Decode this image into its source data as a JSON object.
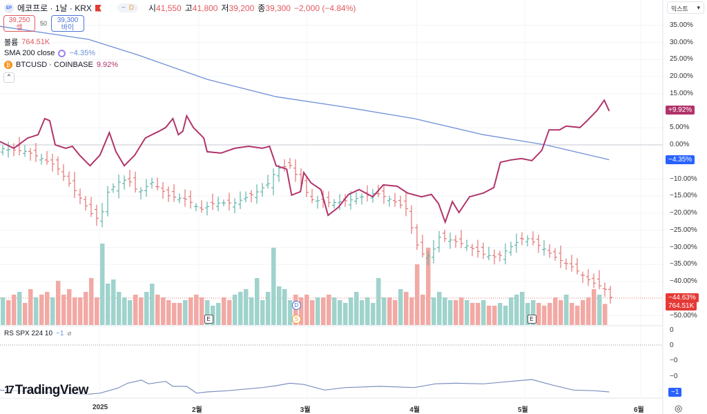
{
  "header": {
    "badge": "EP",
    "symbol": "에코프로 · 1날 · KRX",
    "interval_badge": "D",
    "open_label": "시",
    "open": "41,550",
    "high_label": "고",
    "high": "41,800",
    "low_label": "저",
    "low": "39,200",
    "close_label": "종",
    "close": "39,300",
    "change": "−2,000 (−4.84%)"
  },
  "order": {
    "sell_price": "39,250",
    "sell_label": "셀",
    "spread": "50",
    "buy_price": "39,300",
    "buy_label": "바이"
  },
  "legends": {
    "volume_label": "볼륨",
    "volume_value": "764.51K",
    "sma_label": "SMA 200 close",
    "sma_value": "−4.35%",
    "btc_icon": "₿",
    "btc_label": "BTCUSD · COINBASE",
    "btc_value": "9.92%",
    "rs_label": "RS SPX 224 10",
    "rs_value": "−1",
    "rs_icon": "⌀",
    "collapse": "⌃"
  },
  "scale_mode": "믹스트",
  "scale_chevron": "▾",
  "colors": {
    "btc": "#b0336a",
    "sma": "#6f8fd8",
    "up": "#5fb3a8",
    "down": "#e57373",
    "vol_up": "#9fd3cc",
    "vol_down": "#f2a9a4",
    "rs": "#7b8fc0"
  },
  "y_axis": [
    "35.00%",
    "30.00%",
    "25.00%",
    "20.00%",
    "15.00%",
    "5.00%",
    "0.00%",
    "−10.00%",
    "−15.00%",
    "−20.00%",
    "−25.00%",
    "−30.00%",
    "−35.00%",
    "−40.00%",
    "−50.00%"
  ],
  "y_ticks": [
    35,
    30,
    25,
    20,
    15,
    5,
    0,
    -10,
    -15,
    -20,
    -25,
    -30,
    -35,
    -40,
    -50
  ],
  "tags": {
    "btc": "+9.92%",
    "sma": "−4.35%",
    "price": "−44.63%",
    "volume": "764.51K",
    "rs": "−1"
  },
  "rs_axis": [
    "0",
    "0",
    "−0",
    "−0"
  ],
  "time_axis": [
    {
      "label": "2025",
      "day": 18
    },
    {
      "label": "2월",
      "day": 36
    },
    {
      "label": "3월",
      "day": 55.6
    },
    {
      "label": "4월",
      "day": 75.4
    },
    {
      "label": "5월",
      "day": 95
    },
    {
      "label": "6월",
      "day": 116
    }
  ],
  "markers": [
    {
      "label": "E",
      "day": 37.7,
      "row": "bottom"
    },
    {
      "label": "D",
      "day": 53.6,
      "row": "top",
      "color": "#4a72d8"
    },
    {
      "label": "S",
      "day": 53.6,
      "row": "bottom",
      "color": "#f0a030"
    },
    {
      "label": "E",
      "day": 96.2,
      "row": "bottom"
    }
  ],
  "logo": "TradingView",
  "settings_icon": "◎",
  "chart_data": {
    "type": "line",
    "x_unit": "trading day index",
    "y_unit": "percent change",
    "btc": [
      [
        0,
        1
      ],
      [
        2.5,
        -1
      ],
      [
        5,
        2
      ],
      [
        6.9,
        3
      ],
      [
        8.1,
        7.7
      ],
      [
        9,
        7.1
      ],
      [
        10,
        0
      ],
      [
        11.9,
        -1
      ],
      [
        13.1,
        -0.4
      ],
      [
        14.4,
        -3
      ],
      [
        16.3,
        -6.1
      ],
      [
        18.1,
        -3
      ],
      [
        19.8,
        3.6
      ],
      [
        21,
        -2
      ],
      [
        22.5,
        -6.1
      ],
      [
        24.4,
        -3
      ],
      [
        26.3,
        2
      ],
      [
        27.5,
        3
      ],
      [
        28.8,
        4
      ],
      [
        30,
        5.1
      ],
      [
        31.3,
        7.7
      ],
      [
        32.3,
        3
      ],
      [
        33.1,
        4
      ],
      [
        33.8,
        8.5
      ],
      [
        35,
        5.1
      ],
      [
        36.9,
        2
      ],
      [
        37.5,
        -2
      ],
      [
        40,
        -2.4
      ],
      [
        42.5,
        -1
      ],
      [
        45,
        -0.4
      ],
      [
        47.5,
        -1
      ],
      [
        48.8,
        -0.4
      ],
      [
        50,
        -6.1
      ],
      [
        51.9,
        -7.1
      ],
      [
        52.8,
        -14.7
      ],
      [
        54.4,
        -13.7
      ],
      [
        55,
        -8.1
      ],
      [
        56.3,
        -11.1
      ],
      [
        58.1,
        -13.1
      ],
      [
        59.4,
        -20.6
      ],
      [
        61.3,
        -18.2
      ],
      [
        63.1,
        -14.5
      ],
      [
        65,
        -13.1
      ],
      [
        67.5,
        -15.2
      ],
      [
        69.4,
        -11.7
      ],
      [
        71.9,
        -12.1
      ],
      [
        73.8,
        -14.1
      ],
      [
        76.3,
        -15.2
      ],
      [
        78.1,
        -14.5
      ],
      [
        79.4,
        -17.2
      ],
      [
        80.6,
        -22.6
      ],
      [
        81.9,
        -16.6
      ],
      [
        83.1,
        -19.8
      ],
      [
        85,
        -15.2
      ],
      [
        87.5,
        -14.1
      ],
      [
        89.4,
        -12.5
      ],
      [
        90.6,
        -5.1
      ],
      [
        92.5,
        -4.4
      ],
      [
        94.4,
        -4
      ],
      [
        96.3,
        -4.6
      ],
      [
        98.1,
        -1.6
      ],
      [
        99.4,
        4.4
      ],
      [
        101.3,
        4.4
      ],
      [
        102.5,
        5.5
      ],
      [
        105,
        5.1
      ],
      [
        106.3,
        7.1
      ],
      [
        108.1,
        10.1
      ],
      [
        109.4,
        13.1
      ],
      [
        110.3,
        9.92
      ]
    ],
    "sma": [
      [
        0,
        34.7
      ],
      [
        16,
        30.9
      ],
      [
        25,
        26.3
      ],
      [
        37.5,
        19.2
      ],
      [
        50,
        14.1
      ],
      [
        62,
        11.2
      ],
      [
        75,
        7.7
      ],
      [
        87.5,
        3
      ],
      [
        98.8,
        0
      ],
      [
        110.3,
        -4.35
      ]
    ],
    "price_close": [
      [
        0,
        -1
      ],
      [
        5,
        -2
      ],
      [
        10,
        -6
      ],
      [
        13.8,
        -14
      ],
      [
        16.9,
        -21
      ],
      [
        18.1,
        -22
      ],
      [
        19.4,
        -14
      ],
      [
        21.3,
        -11
      ],
      [
        23.1,
        -10
      ],
      [
        25,
        -14
      ],
      [
        27.5,
        -11
      ],
      [
        30.6,
        -15
      ],
      [
        33.8,
        -16
      ],
      [
        36.3,
        -19
      ],
      [
        38.8,
        -17
      ],
      [
        42.5,
        -17
      ],
      [
        46.3,
        -14
      ],
      [
        48.8,
        -11
      ],
      [
        50,
        -7
      ],
      [
        52.5,
        -6
      ],
      [
        56.3,
        -16
      ],
      [
        60,
        -17
      ],
      [
        63.8,
        -16
      ],
      [
        68.1,
        -14
      ],
      [
        71.9,
        -17
      ],
      [
        73.8,
        -19
      ],
      [
        75,
        -28
      ],
      [
        76.9,
        -33
      ],
      [
        78.1,
        -32
      ],
      [
        79.4,
        -27
      ],
      [
        81.9,
        -28
      ],
      [
        83.8,
        -29
      ],
      [
        87.5,
        -32
      ],
      [
        90,
        -33
      ],
      [
        93.1,
        -29
      ],
      [
        95,
        -27
      ],
      [
        98.1,
        -30
      ],
      [
        100.6,
        -33
      ],
      [
        103.8,
        -36
      ],
      [
        106.9,
        -40
      ],
      [
        109.4,
        -42
      ],
      [
        110.3,
        -44.63
      ]
    ],
    "volume_k": [
      1000,
      900,
      1100,
      1200,
      800,
      1300,
      1000,
      1100,
      1200,
      1000,
      1600,
      1100,
      1300,
      1000,
      1000,
      1200,
      1700,
      1000,
      2950,
      1500,
      1650,
      1200,
      1000,
      900,
      1100,
      1000,
      1200,
      1500,
      1100,
      1000,
      900,
      800,
      800,
      900,
      1000,
      1100,
      1000,
      900,
      700,
      800,
      1000,
      900,
      1100,
      1200,
      1300,
      1000,
      1700,
      900,
      1200,
      2800,
      1400,
      1300,
      900,
      1100,
      1000,
      1100,
      900,
      1000,
      1000,
      1100,
      1000,
      900,
      800,
      1000,
      1200,
      900,
      1000,
      800,
      1700,
      1000,
      1000,
      900,
      1300,
      1200,
      1000,
      2200,
      1100,
      2800,
      1000,
      1200,
      1000,
      900,
      900,
      1000,
      900,
      800,
      800,
      900,
      700,
      700,
      800,
      700,
      1000,
      1100,
      1200,
      800,
      900,
      800,
      700,
      800,
      1000,
      900,
      1100,
      800,
      700,
      900,
      1000,
      1300,
      1100,
      764.51
    ],
    "rs": [
      [
        0,
        -0.97
      ],
      [
        5,
        -0.99
      ],
      [
        15.6,
        -1.04
      ],
      [
        18.1,
        -1.02
      ],
      [
        21.3,
        -0.94
      ],
      [
        23.1,
        -0.86
      ],
      [
        25.6,
        -0.81
      ],
      [
        26.9,
        -0.87
      ],
      [
        30,
        -0.83
      ],
      [
        31.3,
        -0.91
      ],
      [
        33.8,
        -0.91
      ],
      [
        35.6,
        -1.02
      ],
      [
        37.5,
        -1
      ],
      [
        41.3,
        -0.98
      ],
      [
        47.5,
        -0.93
      ],
      [
        50,
        -0.9
      ],
      [
        52.5,
        -0.86
      ],
      [
        55,
        -0.88
      ],
      [
        58.8,
        -0.97
      ],
      [
        62.5,
        -0.93
      ],
      [
        68.8,
        -0.91
      ],
      [
        75,
        -0.93
      ],
      [
        78.8,
        -0.87
      ],
      [
        82.5,
        -0.86
      ],
      [
        87.5,
        -0.87
      ],
      [
        92.5,
        -0.83
      ],
      [
        96.3,
        -0.8
      ],
      [
        100,
        -0.89
      ],
      [
        103.8,
        -0.97
      ],
      [
        107.5,
        -0.98
      ],
      [
        110.3,
        -1
      ]
    ]
  }
}
